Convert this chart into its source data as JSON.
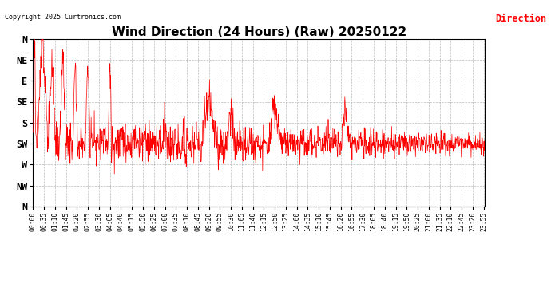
{
  "title": "Wind Direction (24 Hours) (Raw) 20250122",
  "copyright_text": "Copyright 2025 Curtronics.com",
  "legend_label": "Direction",
  "legend_color": "#ff0000",
  "line_color": "#ff0000",
  "background_color": "#ffffff",
  "grid_color": "#aaaaaa",
  "title_fontsize": 11,
  "ylabel_ticks": [
    "N",
    "NW",
    "W",
    "SW",
    "S",
    "SE",
    "E",
    "NE",
    "N"
  ],
  "ylabel_values": [
    360,
    315,
    270,
    225,
    180,
    135,
    90,
    45,
    0
  ],
  "ylim_min": 0,
  "ylim_max": 360,
  "x_tick_labels": [
    "00:00",
    "00:35",
    "01:10",
    "01:45",
    "02:20",
    "02:55",
    "03:30",
    "04:05",
    "04:40",
    "05:15",
    "05:50",
    "06:25",
    "07:00",
    "07:35",
    "08:10",
    "08:45",
    "09:20",
    "09:55",
    "10:30",
    "11:05",
    "11:40",
    "12:15",
    "12:50",
    "13:25",
    "14:00",
    "14:35",
    "15:10",
    "15:45",
    "16:20",
    "16:55",
    "17:30",
    "18:05",
    "18:40",
    "19:15",
    "19:50",
    "20:25",
    "21:00",
    "21:35",
    "22:10",
    "22:45",
    "23:20",
    "23:55"
  ],
  "n_points": 1440,
  "base_direction": 225,
  "noise_std": 22
}
